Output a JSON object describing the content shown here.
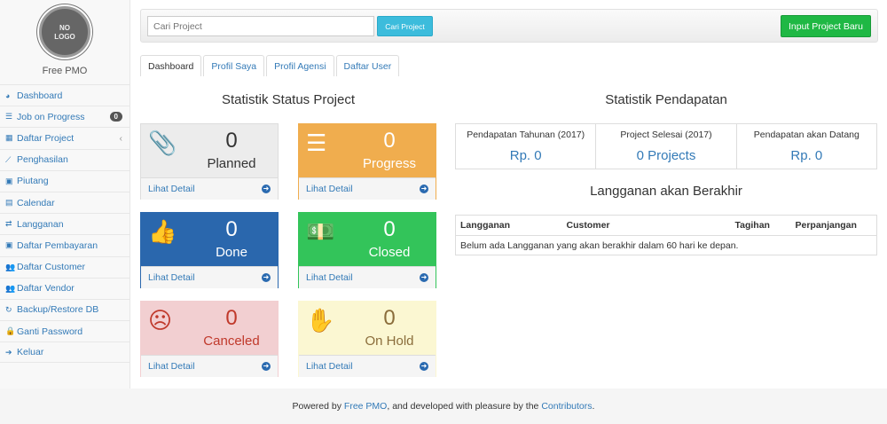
{
  "sidebar": {
    "logo_text": "NO LOGO",
    "brand": "Free PMO",
    "items": [
      {
        "label": "Dashboard",
        "icon": "dashboard-icon",
        "glyph": "◕"
      },
      {
        "label": "Job on Progress",
        "icon": "tasks-icon",
        "glyph": "☰",
        "badge": "0"
      },
      {
        "label": "Daftar Project",
        "icon": "table-icon",
        "glyph": "▦",
        "chevron": "‹"
      },
      {
        "label": "Penghasilan",
        "icon": "line-chart-icon",
        "glyph": "⟋"
      },
      {
        "label": "Piutang",
        "icon": "money-icon",
        "glyph": "▣"
      },
      {
        "label": "Calendar",
        "icon": "calendar-icon",
        "glyph": "▤"
      },
      {
        "label": "Langganan",
        "icon": "retweet-icon",
        "glyph": "⇄"
      },
      {
        "label": "Daftar Pembayaran",
        "icon": "money-icon",
        "glyph": "▣"
      },
      {
        "label": "Daftar Customer",
        "icon": "users-icon",
        "glyph": "👥"
      },
      {
        "label": "Daftar Vendor",
        "icon": "users-icon",
        "glyph": "👥"
      },
      {
        "label": "Backup/Restore DB",
        "icon": "refresh-icon",
        "glyph": "↻"
      },
      {
        "label": "Ganti Password",
        "icon": "lock-icon",
        "glyph": "🔒"
      },
      {
        "label": "Keluar",
        "icon": "sign-out-icon",
        "glyph": "➔"
      }
    ]
  },
  "topbar": {
    "search_placeholder": "Cari Project",
    "search_button": "Cari Project",
    "new_button": "Input Project Baru"
  },
  "tabs": [
    "Dashboard",
    "Profil Saya",
    "Profil Agensi",
    "Daftar User"
  ],
  "status": {
    "title": "Statistik Status Project",
    "detail_label": "Lihat Detail",
    "cards": [
      {
        "label": "Planned",
        "value": "0",
        "icon": "paperclip-icon",
        "glyph": "📎",
        "bg": "#ececec",
        "fg": "#333"
      },
      {
        "label": "Progress",
        "value": "0",
        "icon": "tasks-icon",
        "glyph": "☰",
        "bg": "#f0ad4e",
        "fg": "#fff"
      },
      {
        "label": "Done",
        "value": "0",
        "icon": "thumbs-up-icon",
        "glyph": "👍",
        "bg": "#2a67ad",
        "fg": "#fff"
      },
      {
        "label": "Closed",
        "value": "0",
        "icon": "money-icon",
        "glyph": "💵",
        "bg": "#33c45a",
        "fg": "#fff"
      },
      {
        "label": "Canceled",
        "value": "0",
        "icon": "frown-icon",
        "glyph": "☹",
        "bg": "#f2cfd1",
        "fg": "#c0392b"
      },
      {
        "label": "On Hold",
        "value": "0",
        "icon": "hand-stop-icon",
        "glyph": "✋",
        "bg": "#fbf7d2",
        "fg": "#8a6d3b"
      }
    ]
  },
  "income": {
    "title": "Statistik Pendapatan",
    "stats": [
      {
        "label": "Pendapatan Tahunan (2017)",
        "value": "Rp. 0"
      },
      {
        "label": "Project Selesai (2017)",
        "value": "0 Projects"
      },
      {
        "label": "Pendapatan akan Datang",
        "value": "Rp. 0"
      }
    ]
  },
  "subscriptions": {
    "title": "Langganan akan Berakhir",
    "columns": [
      "Langganan",
      "Customer",
      "Tagihan",
      "Perpanjangan"
    ],
    "empty": "Belum ada Langganan yang akan berakhir dalam 60 hari ke depan."
  },
  "footer": {
    "prefix": "Powered by ",
    "link1": "Free PMO",
    "middle": ", and developed with pleasure by the ",
    "link2": "Contributors",
    "suffix": "."
  }
}
